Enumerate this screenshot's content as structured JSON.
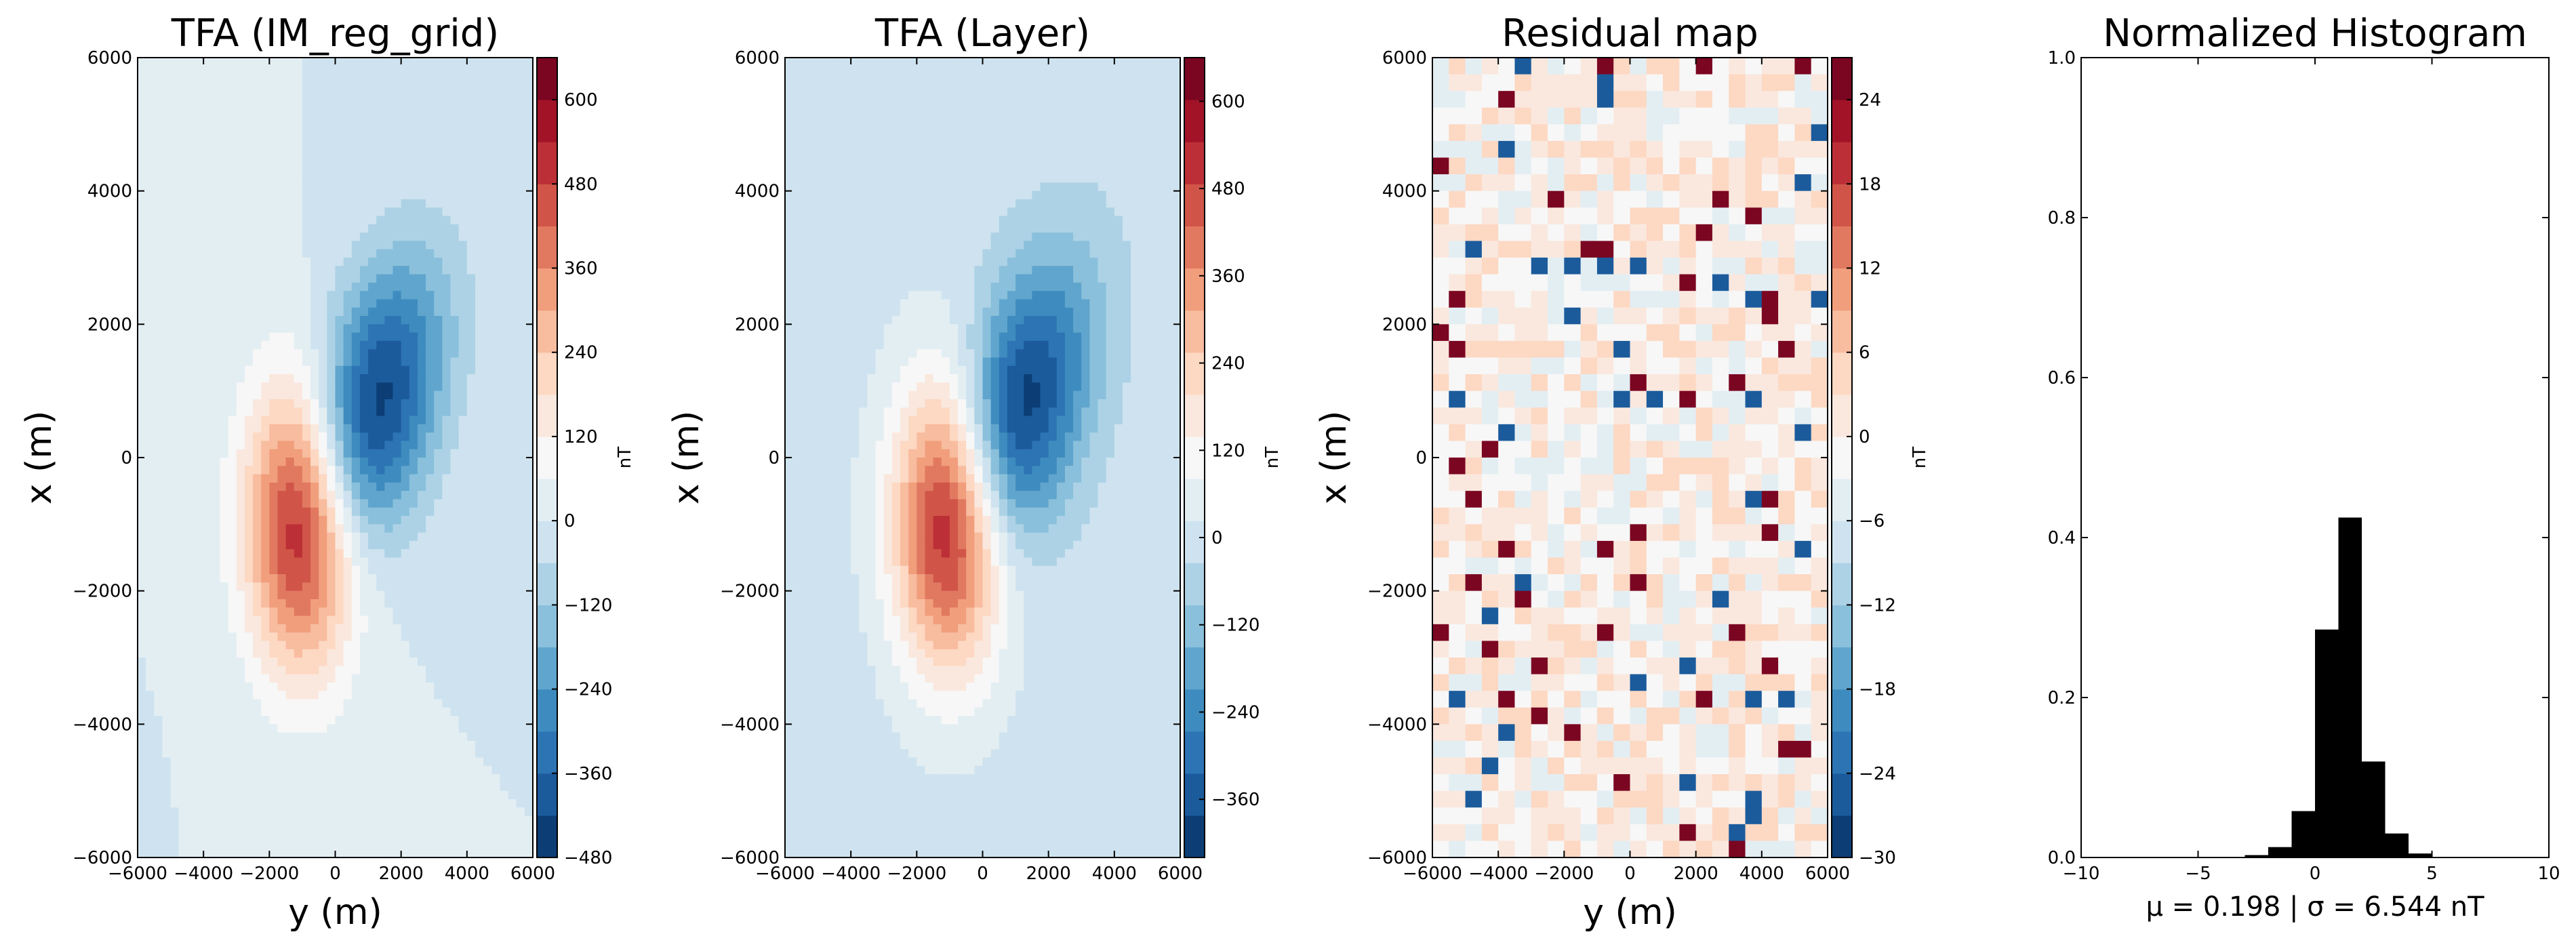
{
  "chart_data": [
    {
      "type": "heatmap",
      "title": "TFA (IM_reg_grid)",
      "xlabel": "y (m)",
      "ylabel": "x (m)",
      "xlim": [
        -6000,
        6000
      ],
      "ylim": [
        -6000,
        6000
      ],
      "xticks": [
        "−6000",
        "−4000",
        "−2000",
        "0",
        "2000",
        "4000",
        "6000"
      ],
      "yticks": [
        "6000",
        "4000",
        "2000",
        "0",
        "−2000",
        "−4000",
        "−6000"
      ],
      "field": {
        "positive_peak": {
          "x": -1000,
          "y": -1000,
          "value": 660
        },
        "negative_peak": {
          "x": 1000,
          "y": 600,
          "value": -480
        }
      },
      "colorbar": {
        "label": "nT",
        "min": -480,
        "max": 660,
        "ticks": [
          "600",
          "480",
          "360",
          "240",
          "120",
          "0",
          "−120",
          "−240",
          "−360",
          "−480"
        ]
      }
    },
    {
      "type": "heatmap",
      "title": "TFA (Layer)",
      "xlabel": "",
      "ylabel": "x (m)",
      "xlim": [
        -6000,
        6000
      ],
      "ylim": [
        -6000,
        6000
      ],
      "xticks": [
        "−6000",
        "−4000",
        "−2000",
        "0",
        "2000",
        "4000",
        "6000"
      ],
      "yticks": [
        "6000",
        "4000",
        "2000",
        "0",
        "−2000",
        "−4000",
        "−6000"
      ],
      "field": {
        "positive_peak": {
          "x": -1000,
          "y": -1000,
          "value": 660
        },
        "negative_peak": {
          "x": 1000,
          "y": 600,
          "value": -440
        }
      },
      "colorbar": {
        "label": "nT",
        "min": -440,
        "max": 660,
        "ticks": [
          "600",
          "480",
          "360",
          "240",
          "120",
          "0",
          "−120",
          "−240",
          "−360"
        ]
      }
    },
    {
      "type": "heatmap",
      "title": "Residual map",
      "xlabel": "y (m)",
      "ylabel": "x (m)",
      "xlim": [
        -6000,
        6000
      ],
      "ylim": [
        -6000,
        6000
      ],
      "xticks": [
        "−6000",
        "−4000",
        "−2000",
        "0",
        "2000",
        "4000",
        "6000"
      ],
      "yticks": [
        "6000",
        "4000",
        "2000",
        "0",
        "−2000",
        "−4000",
        "−6000"
      ],
      "field": {
        "description_of_values": "small alternating residuals, range about -30 to 27 nT"
      },
      "colorbar": {
        "label": "nT",
        "min": -30,
        "max": 27,
        "ticks": [
          "24",
          "18",
          "12",
          "6",
          "0",
          "−6",
          "−12",
          "−18",
          "−24",
          "−30"
        ]
      }
    },
    {
      "type": "bar",
      "title": "Normalized Histogram",
      "xlabel": "μ = 0.198 | σ = 6.544 nT",
      "xlim": [
        -10,
        10
      ],
      "ylim": [
        0,
        1
      ],
      "xticks": [
        "−10",
        "−5",
        "0",
        "5",
        "10"
      ],
      "yticks": [
        "1.0",
        "0.8",
        "0.6",
        "0.4",
        "0.2",
        "0.0"
      ],
      "bins": [
        {
          "x0": -3.0,
          "x1": -2.0,
          "value": 0.003
        },
        {
          "x0": -2.0,
          "x1": -1.0,
          "value": 0.013
        },
        {
          "x0": -1.0,
          "x1": 0.0,
          "value": 0.058
        },
        {
          "x0": 0.0,
          "x1": 1.0,
          "value": 0.285
        },
        {
          "x0": 1.0,
          "x1": 2.0,
          "value": 0.425
        },
        {
          "x0": 2.0,
          "x1": 3.0,
          "value": 0.12
        },
        {
          "x0": 3.0,
          "x1": 4.0,
          "value": 0.03
        },
        {
          "x0": 4.0,
          "x1": 5.0,
          "value": 0.005
        }
      ],
      "bar_color": "#000000"
    }
  ]
}
